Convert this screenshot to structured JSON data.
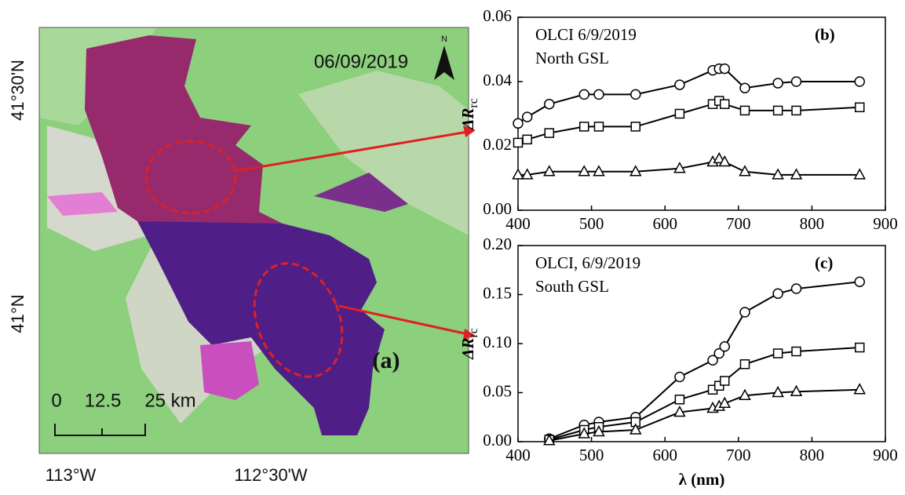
{
  "map": {
    "date": "06/09/2019",
    "north": "N",
    "lat_labels": [
      "41°30'N",
      "41°N"
    ],
    "lon_labels": [
      "113°W",
      "112°30'W"
    ],
    "scale_labels": [
      "0",
      "12.5",
      "25 km"
    ],
    "panel_label": "(a)"
  },
  "chart_data": [
    {
      "type": "line",
      "annotations": [
        "OLCI 6/9/2019",
        "North GSL"
      ],
      "panel_label": "(b)",
      "y_label": {
        "base": "ΔR",
        "sub": "rc"
      },
      "x": [
        400,
        412.5,
        442.5,
        490,
        510,
        560,
        620,
        665,
        673.75,
        681.25,
        708.75,
        753.75,
        778.75,
        865
      ],
      "series": [
        {
          "marker": "circle",
          "color": "#000000",
          "values": [
            0.027,
            0.029,
            0.033,
            0.036,
            0.036,
            0.036,
            0.039,
            0.0435,
            0.044,
            0.044,
            0.038,
            0.0395,
            0.04,
            0.04
          ]
        },
        {
          "marker": "square",
          "color": "#000000",
          "values": [
            0.021,
            0.022,
            0.024,
            0.026,
            0.026,
            0.026,
            0.03,
            0.033,
            0.034,
            0.033,
            0.031,
            0.031,
            0.031,
            0.032
          ]
        },
        {
          "marker": "triangle",
          "color": "#000000",
          "values": [
            0.011,
            0.011,
            0.012,
            0.012,
            0.012,
            0.012,
            0.013,
            0.015,
            0.016,
            0.015,
            0.012,
            0.011,
            0.011,
            0.011
          ]
        }
      ],
      "xlim": [
        400,
        900
      ],
      "xticks": [
        400,
        500,
        600,
        700,
        800,
        900
      ],
      "ylim": [
        0,
        0.06
      ],
      "yticks": [
        {
          "value": 0,
          "label": "0.00"
        },
        {
          "value": 0.02,
          "label": "0.02"
        },
        {
          "value": 0.04,
          "label": "0.04"
        },
        {
          "value": 0.06,
          "label": "0.06"
        }
      ]
    },
    {
      "type": "line",
      "annotations": [
        "OLCI, 6/9/2019",
        "South GSL"
      ],
      "panel_label": "(c)",
      "y_label": {
        "base": "ΔR",
        "sub": "rc"
      },
      "x_label": "λ (nm)",
      "x": [
        442.5,
        490,
        510,
        560,
        620,
        665,
        673.75,
        681.25,
        708.75,
        753.75,
        778.75,
        865
      ],
      "series": [
        {
          "marker": "circle",
          "color": "#000000",
          "values": [
            0.003,
            0.017,
            0.02,
            0.025,
            0.066,
            0.083,
            0.09,
            0.097,
            0.132,
            0.151,
            0.156,
            0.163
          ]
        },
        {
          "marker": "square",
          "color": "#000000",
          "values": [
            0.002,
            0.012,
            0.015,
            0.02,
            0.043,
            0.053,
            0.057,
            0.062,
            0.079,
            0.09,
            0.092,
            0.096
          ]
        },
        {
          "marker": "triangle",
          "color": "#000000",
          "values": [
            0.001,
            0.008,
            0.01,
            0.012,
            0.03,
            0.034,
            0.036,
            0.039,
            0.047,
            0.05,
            0.051,
            0.053
          ]
        }
      ],
      "xlim": [
        400,
        900
      ],
      "xticks": [
        400,
        500,
        600,
        700,
        800,
        900
      ],
      "ylim": [
        0,
        0.2
      ],
      "yticks": [
        {
          "value": 0,
          "label": "0.00"
        },
        {
          "value": 0.05,
          "label": "0.05"
        },
        {
          "value": 0.1,
          "label": "0.10"
        },
        {
          "value": 0.15,
          "label": "0.15"
        },
        {
          "value": 0.2,
          "label": "0.20"
        }
      ]
    }
  ]
}
